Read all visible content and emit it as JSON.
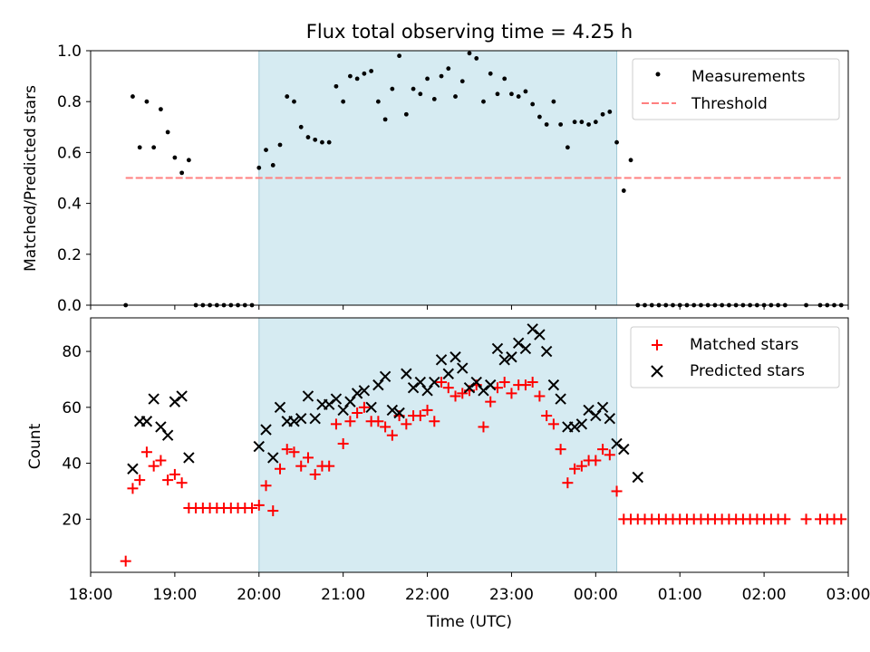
{
  "chart_data": [
    {
      "type": "scatter",
      "title": "Flux total observing time = 4.25 h",
      "xlabel": "",
      "ylabel": "Matched/Predicted stars",
      "xlim": [
        "18:00",
        "03:00"
      ],
      "ylim": [
        0,
        1.0
      ],
      "yticks": [
        "0.0",
        "0.2",
        "0.4",
        "0.6",
        "0.8",
        "1.0"
      ],
      "shaded_span": [
        "20:00",
        "00:15"
      ],
      "threshold": {
        "name": "Threshold",
        "value": 0.5,
        "x_range": [
          "18:25",
          "02:55"
        ],
        "color": "#ff7f7f"
      },
      "legend": "top-right",
      "series": [
        {
          "name": "Measurements",
          "color": "#000000",
          "marker": "dot",
          "points": [
            [
              "18:25",
              0.0
            ],
            [
              "18:30",
              0.82
            ],
            [
              "18:35",
              0.62
            ],
            [
              "18:40",
              0.8
            ],
            [
              "18:45",
              0.62
            ],
            [
              "18:50",
              0.77
            ],
            [
              "18:55",
              0.68
            ],
            [
              "19:00",
              0.58
            ],
            [
              "19:05",
              0.52
            ],
            [
              "19:10",
              0.57
            ],
            [
              "19:15",
              0.0
            ],
            [
              "19:20",
              0.0
            ],
            [
              "19:25",
              0.0
            ],
            [
              "19:30",
              0.0
            ],
            [
              "19:35",
              0.0
            ],
            [
              "19:40",
              0.0
            ],
            [
              "19:45",
              0.0
            ],
            [
              "19:50",
              0.0
            ],
            [
              "19:55",
              0.0
            ],
            [
              "20:00",
              0.54
            ],
            [
              "20:05",
              0.61
            ],
            [
              "20:10",
              0.55
            ],
            [
              "20:15",
              0.63
            ],
            [
              "20:20",
              0.82
            ],
            [
              "20:25",
              0.8
            ],
            [
              "20:30",
              0.7
            ],
            [
              "20:35",
              0.66
            ],
            [
              "20:40",
              0.65
            ],
            [
              "20:45",
              0.64
            ],
            [
              "20:50",
              0.64
            ],
            [
              "20:55",
              0.86
            ],
            [
              "21:00",
              0.8
            ],
            [
              "21:05",
              0.9
            ],
            [
              "21:10",
              0.89
            ],
            [
              "21:15",
              0.91
            ],
            [
              "21:20",
              0.92
            ],
            [
              "21:25",
              0.8
            ],
            [
              "21:30",
              0.73
            ],
            [
              "21:35",
              0.85
            ],
            [
              "21:40",
              0.98
            ],
            [
              "21:45",
              0.75
            ],
            [
              "21:50",
              0.85
            ],
            [
              "21:55",
              0.83
            ],
            [
              "22:00",
              0.89
            ],
            [
              "22:05",
              0.81
            ],
            [
              "22:10",
              0.9
            ],
            [
              "22:15",
              0.93
            ],
            [
              "22:20",
              0.82
            ],
            [
              "22:25",
              0.88
            ],
            [
              "22:30",
              0.99
            ],
            [
              "22:35",
              0.97
            ],
            [
              "22:40",
              0.8
            ],
            [
              "22:45",
              0.91
            ],
            [
              "22:50",
              0.83
            ],
            [
              "22:55",
              0.89
            ],
            [
              "23:00",
              0.83
            ],
            [
              "23:05",
              0.82
            ],
            [
              "23:10",
              0.84
            ],
            [
              "23:15",
              0.79
            ],
            [
              "23:20",
              0.74
            ],
            [
              "23:25",
              0.71
            ],
            [
              "23:30",
              0.8
            ],
            [
              "23:35",
              0.71
            ],
            [
              "23:40",
              0.62
            ],
            [
              "23:45",
              0.72
            ],
            [
              "23:50",
              0.72
            ],
            [
              "23:55",
              0.71
            ],
            [
              "00:00",
              0.72
            ],
            [
              "00:05",
              0.75
            ],
            [
              "00:10",
              0.76
            ],
            [
              "00:15",
              0.64
            ],
            [
              "00:20",
              0.45
            ],
            [
              "00:25",
              0.57
            ],
            [
              "00:30",
              0.0
            ],
            [
              "00:35",
              0.0
            ],
            [
              "00:40",
              0.0
            ],
            [
              "00:45",
              0.0
            ],
            [
              "00:50",
              0.0
            ],
            [
              "00:55",
              0.0
            ],
            [
              "01:00",
              0.0
            ],
            [
              "01:05",
              0.0
            ],
            [
              "01:10",
              0.0
            ],
            [
              "01:15",
              0.0
            ],
            [
              "01:20",
              0.0
            ],
            [
              "01:25",
              0.0
            ],
            [
              "01:30",
              0.0
            ],
            [
              "01:35",
              0.0
            ],
            [
              "01:40",
              0.0
            ],
            [
              "01:45",
              0.0
            ],
            [
              "01:50",
              0.0
            ],
            [
              "01:55",
              0.0
            ],
            [
              "02:00",
              0.0
            ],
            [
              "02:05",
              0.0
            ],
            [
              "02:10",
              0.0
            ],
            [
              "02:15",
              0.0
            ],
            [
              "02:30",
              0.0
            ],
            [
              "02:40",
              0.0
            ],
            [
              "02:45",
              0.0
            ],
            [
              "02:50",
              0.0
            ],
            [
              "02:55",
              0.0
            ]
          ]
        }
      ]
    },
    {
      "type": "scatter",
      "title": "",
      "xlabel": "Time (UTC)",
      "ylabel": "Count",
      "xticks": [
        "18:00",
        "19:00",
        "20:00",
        "21:00",
        "22:00",
        "23:00",
        "00:00",
        "01:00",
        "02:00",
        "03:00"
      ],
      "yticks": [
        "20",
        "40",
        "60",
        "80"
      ],
      "ylim": [
        1,
        92
      ],
      "shaded_span": [
        "20:00",
        "00:15"
      ],
      "legend": "top-right",
      "series": [
        {
          "name": "Matched stars",
          "color": "#ff0000",
          "marker": "plus",
          "points": [
            [
              "18:25",
              5
            ],
            [
              "18:30",
              31
            ],
            [
              "18:35",
              34
            ],
            [
              "18:40",
              44
            ],
            [
              "18:45",
              39
            ],
            [
              "18:50",
              41
            ],
            [
              "18:55",
              34
            ],
            [
              "19:00",
              36
            ],
            [
              "19:05",
              33
            ],
            [
              "19:10",
              24
            ],
            [
              "19:15",
              24
            ],
            [
              "19:20",
              24
            ],
            [
              "19:25",
              24
            ],
            [
              "19:30",
              24
            ],
            [
              "19:35",
              24
            ],
            [
              "19:40",
              24
            ],
            [
              "19:45",
              24
            ],
            [
              "19:50",
              24
            ],
            [
              "19:55",
              24
            ],
            [
              "20:00",
              25
            ],
            [
              "20:05",
              32
            ],
            [
              "20:10",
              23
            ],
            [
              "20:15",
              38
            ],
            [
              "20:20",
              45
            ],
            [
              "20:25",
              44
            ],
            [
              "20:30",
              39
            ],
            [
              "20:35",
              42
            ],
            [
              "20:40",
              36
            ],
            [
              "20:45",
              39
            ],
            [
              "20:50",
              39
            ],
            [
              "20:55",
              54
            ],
            [
              "21:00",
              47
            ],
            [
              "21:05",
              55
            ],
            [
              "21:10",
              58
            ],
            [
              "21:15",
              60
            ],
            [
              "21:20",
              55
            ],
            [
              "21:25",
              55
            ],
            [
              "21:30",
              53
            ],
            [
              "21:35",
              50
            ],
            [
              "21:40",
              57
            ],
            [
              "21:45",
              54
            ],
            [
              "21:50",
              57
            ],
            [
              "21:55",
              57
            ],
            [
              "22:00",
              59
            ],
            [
              "22:05",
              55
            ],
            [
              "22:10",
              69
            ],
            [
              "22:15",
              67
            ],
            [
              "22:20",
              64
            ],
            [
              "22:25",
              65
            ],
            [
              "22:30",
              66
            ],
            [
              "22:35",
              68
            ],
            [
              "22:40",
              53
            ],
            [
              "22:45",
              62
            ],
            [
              "22:50",
              67
            ],
            [
              "22:55",
              69
            ],
            [
              "23:00",
              65
            ],
            [
              "23:05",
              68
            ],
            [
              "23:10",
              68
            ],
            [
              "23:15",
              69
            ],
            [
              "23:20",
              64
            ],
            [
              "23:25",
              57
            ],
            [
              "23:30",
              54
            ],
            [
              "23:35",
              45
            ],
            [
              "23:40",
              33
            ],
            [
              "23:45",
              38
            ],
            [
              "23:50",
              39
            ],
            [
              "23:55",
              41
            ],
            [
              "00:00",
              41
            ],
            [
              "00:05",
              45
            ],
            [
              "00:10",
              43
            ],
            [
              "00:15",
              30
            ],
            [
              "00:20",
              20
            ],
            [
              "00:25",
              20
            ],
            [
              "00:30",
              20
            ],
            [
              "00:35",
              20
            ],
            [
              "00:40",
              20
            ],
            [
              "00:45",
              20
            ],
            [
              "00:50",
              20
            ],
            [
              "00:55",
              20
            ],
            [
              "01:00",
              20
            ],
            [
              "01:05",
              20
            ],
            [
              "01:10",
              20
            ],
            [
              "01:15",
              20
            ],
            [
              "01:20",
              20
            ],
            [
              "01:25",
              20
            ],
            [
              "01:30",
              20
            ],
            [
              "01:35",
              20
            ],
            [
              "01:40",
              20
            ],
            [
              "01:45",
              20
            ],
            [
              "01:50",
              20
            ],
            [
              "01:55",
              20
            ],
            [
              "02:00",
              20
            ],
            [
              "02:05",
              20
            ],
            [
              "02:10",
              20
            ],
            [
              "02:15",
              20
            ],
            [
              "02:30",
              20
            ],
            [
              "02:40",
              20
            ],
            [
              "02:45",
              20
            ],
            [
              "02:50",
              20
            ],
            [
              "02:55",
              20
            ]
          ]
        },
        {
          "name": "Predicted stars",
          "color": "#000000",
          "marker": "x",
          "points": [
            [
              "18:30",
              38
            ],
            [
              "18:35",
              55
            ],
            [
              "18:40",
              55
            ],
            [
              "18:45",
              63
            ],
            [
              "18:50",
              53
            ],
            [
              "18:55",
              50
            ],
            [
              "19:00",
              62
            ],
            [
              "19:05",
              64
            ],
            [
              "19:10",
              42
            ],
            [
              "20:00",
              46
            ],
            [
              "20:05",
              52
            ],
            [
              "20:10",
              42
            ],
            [
              "20:15",
              60
            ],
            [
              "20:20",
              55
            ],
            [
              "20:25",
              55
            ],
            [
              "20:30",
              56
            ],
            [
              "20:35",
              64
            ],
            [
              "20:40",
              56
            ],
            [
              "20:45",
              61
            ],
            [
              "20:50",
              61
            ],
            [
              "20:55",
              63
            ],
            [
              "21:00",
              59
            ],
            [
              "21:05",
              62
            ],
            [
              "21:10",
              65
            ],
            [
              "21:15",
              66
            ],
            [
              "21:20",
              60
            ],
            [
              "21:25",
              68
            ],
            [
              "21:30",
              71
            ],
            [
              "21:35",
              59
            ],
            [
              "21:40",
              58
            ],
            [
              "21:45",
              72
            ],
            [
              "21:50",
              67
            ],
            [
              "21:55",
              69
            ],
            [
              "22:00",
              66
            ],
            [
              "22:05",
              69
            ],
            [
              "22:10",
              77
            ],
            [
              "22:15",
              72
            ],
            [
              "22:20",
              78
            ],
            [
              "22:25",
              74
            ],
            [
              "22:30",
              67
            ],
            [
              "22:35",
              69
            ],
            [
              "22:40",
              66
            ],
            [
              "22:45",
              68
            ],
            [
              "22:50",
              81
            ],
            [
              "22:55",
              77
            ],
            [
              "23:00",
              78
            ],
            [
              "23:05",
              83
            ],
            [
              "23:10",
              81
            ],
            [
              "23:15",
              88
            ],
            [
              "23:20",
              86
            ],
            [
              "23:25",
              80
            ],
            [
              "23:30",
              68
            ],
            [
              "23:35",
              63
            ],
            [
              "23:40",
              53
            ],
            [
              "23:45",
              53
            ],
            [
              "23:50",
              54
            ],
            [
              "23:55",
              59
            ],
            [
              "00:00",
              57
            ],
            [
              "00:05",
              60
            ],
            [
              "00:10",
              56
            ],
            [
              "00:15",
              47
            ],
            [
              "00:20",
              45
            ],
            [
              "00:30",
              35
            ]
          ]
        }
      ]
    }
  ]
}
